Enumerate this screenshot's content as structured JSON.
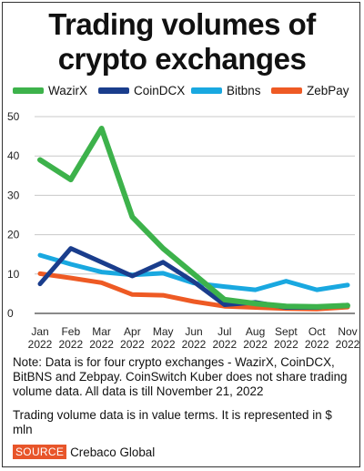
{
  "title_line1": "Trading volumes of",
  "title_line2": "crypto exchanges",
  "note": "Note: Data is for four crypto exchanges - WazirX, CoinDCX, BitBNS and Zebpay. CoinSwitch Kuber does not share trading volume data. All data is till November 21, 2022",
  "note2": "Trading volume data is in value terms. It is represented in $ mln",
  "source_label": "SOURCE",
  "source_text": "Crebaco Global",
  "chart_data": {
    "type": "line",
    "title": "Trading volumes of crypto exchanges",
    "ylim": [
      0,
      50
    ],
    "yticks": [
      "0",
      "10",
      "20",
      "30",
      "40",
      "50"
    ],
    "grid": true,
    "legend_position": "top",
    "categories": [
      {
        "month": "Jan",
        "year": "2022"
      },
      {
        "month": "Feb",
        "year": "2022"
      },
      {
        "month": "Mar",
        "year": "2022"
      },
      {
        "month": "Apr",
        "year": "2022"
      },
      {
        "month": "May",
        "year": "2022"
      },
      {
        "month": "Jun",
        "year": "2022"
      },
      {
        "month": "Jul",
        "year": "2022"
      },
      {
        "month": "Aug",
        "year": "2022"
      },
      {
        "month": "Sept",
        "year": "2022"
      },
      {
        "month": "Oct",
        "year": "2022"
      },
      {
        "month": "Nov",
        "year": "2022"
      }
    ],
    "series": [
      {
        "name": "WazirX",
        "color": "#3db24b",
        "values": [
          39,
          34,
          47,
          24.5,
          16.5,
          10,
          3.5,
          2.5,
          1.8,
          1.7,
          2
        ]
      },
      {
        "name": "CoinDCX",
        "color": "#1a3d8c",
        "values": [
          7.5,
          16.5,
          13,
          9.5,
          13,
          8,
          2.2,
          2.8,
          1.5,
          1.5,
          2.1
        ]
      },
      {
        "name": "Bitbns",
        "color": "#19a8e0",
        "values": [
          14.8,
          12.5,
          10.5,
          9.8,
          10.2,
          7.7,
          6.8,
          6,
          8.2,
          6,
          7.2
        ]
      },
      {
        "name": "ZebPay",
        "color": "#ee5a24",
        "values": [
          10.1,
          9,
          7.8,
          4.8,
          4.6,
          3,
          1.8,
          1.5,
          1.2,
          1.1,
          1.6
        ]
      }
    ]
  }
}
